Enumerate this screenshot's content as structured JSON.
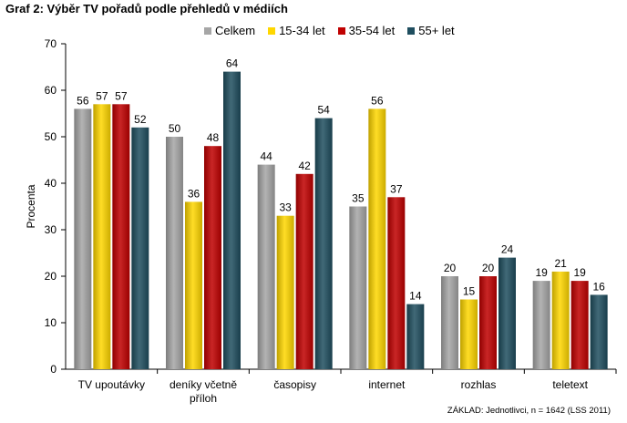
{
  "title": "Graf 2: Výběr TV pořadů podle přehledů  v médiích",
  "footnote": "ZÁKLAD: Jednotlivci, n = 1642 (LSS 2011)",
  "chart_data": {
    "type": "bar",
    "ylabel": "Procenta",
    "ylim": [
      0,
      70
    ],
    "yticks": [
      0,
      10,
      20,
      30,
      40,
      50,
      60,
      70
    ],
    "categories": [
      [
        "TV upoutávky"
      ],
      [
        "deníky včetně",
        "příloh"
      ],
      [
        "časopisy"
      ],
      [
        "internet"
      ],
      [
        "rozhlas"
      ],
      [
        "teletext"
      ]
    ],
    "series": [
      {
        "name": "Celkem",
        "color": "#a6a6a6",
        "values": [
          56,
          50,
          44,
          35,
          20,
          19
        ]
      },
      {
        "name": "15-34 let",
        "color": "#ffd700",
        "values": [
          57,
          36,
          33,
          56,
          15,
          21
        ]
      },
      {
        "name": "35-54 let",
        "color": "#c00000",
        "values": [
          57,
          48,
          42,
          37,
          20,
          19
        ]
      },
      {
        "name": "55+ let",
        "color": "#1f4e5f",
        "values": [
          52,
          64,
          54,
          14,
          24,
          16
        ]
      }
    ],
    "legend_position": "top",
    "grid": false
  }
}
